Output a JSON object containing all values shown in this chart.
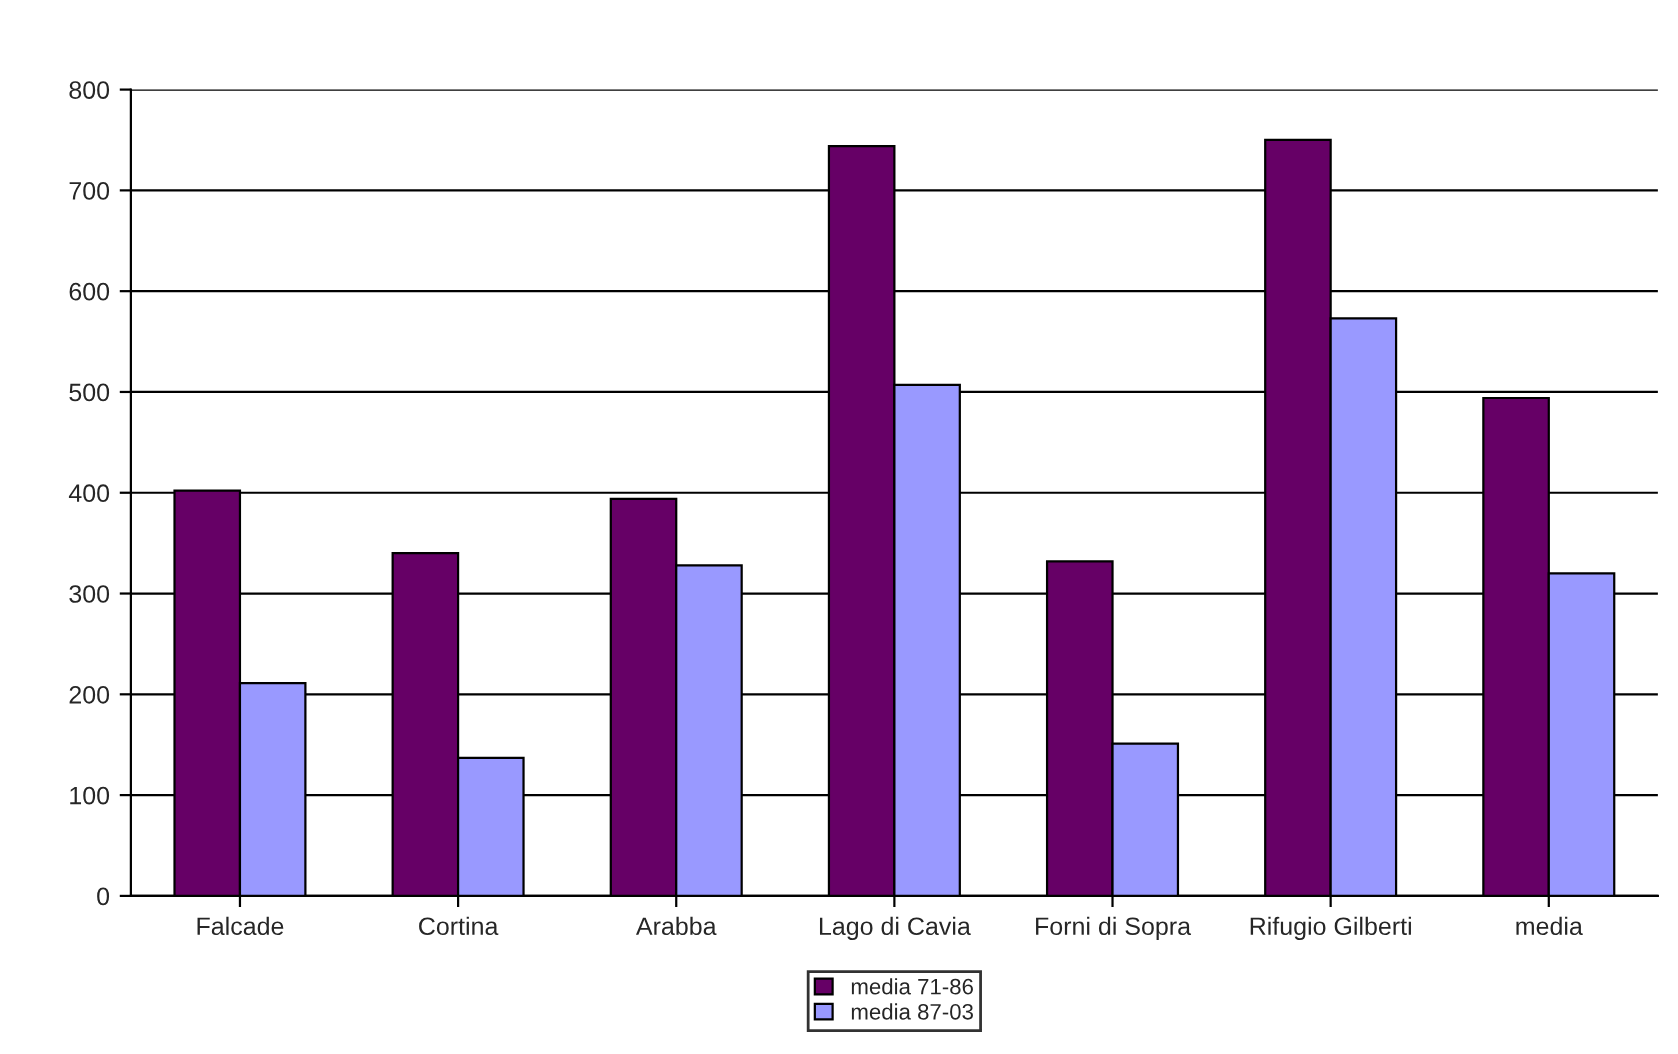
{
  "chart_data": {
    "type": "bar",
    "categories": [
      "Falcade",
      "Cortina",
      "Arabba",
      "Lago di Cavia",
      "Forni di Sopra",
      "Rifugio Gilberti",
      "media"
    ],
    "series": [
      {
        "name": "media 71-86",
        "color": "#660066",
        "values": [
          402,
          340,
          394,
          744,
          332,
          750,
          494
        ]
      },
      {
        "name": "media 87-03",
        "color": "#9999ff",
        "values": [
          211,
          137,
          328,
          507,
          151,
          573,
          320
        ]
      }
    ],
    "ylim": [
      0,
      800
    ],
    "yticks": [
      0,
      100,
      200,
      300,
      400,
      500,
      600,
      700,
      800
    ],
    "grid": "y",
    "legend": "bottom"
  }
}
